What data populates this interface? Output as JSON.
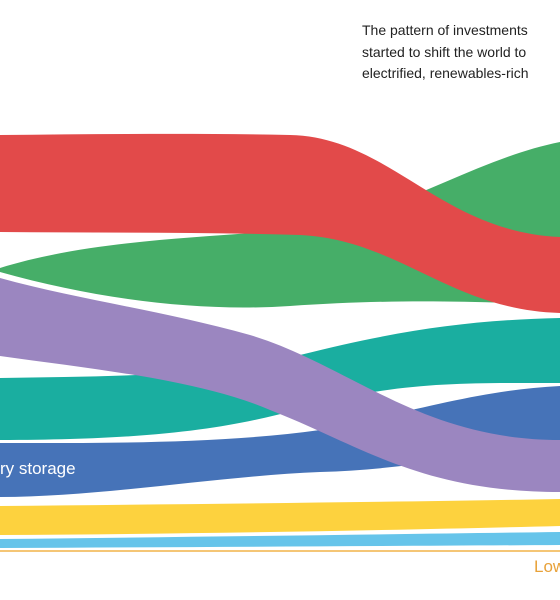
{
  "intro": {
    "lines": [
      "The pattern of investments",
      "started to shift the world to",
      "electrified, renewables-rich"
    ]
  },
  "ribbon_label": "ry storage",
  "axis_label": "Low"
}
